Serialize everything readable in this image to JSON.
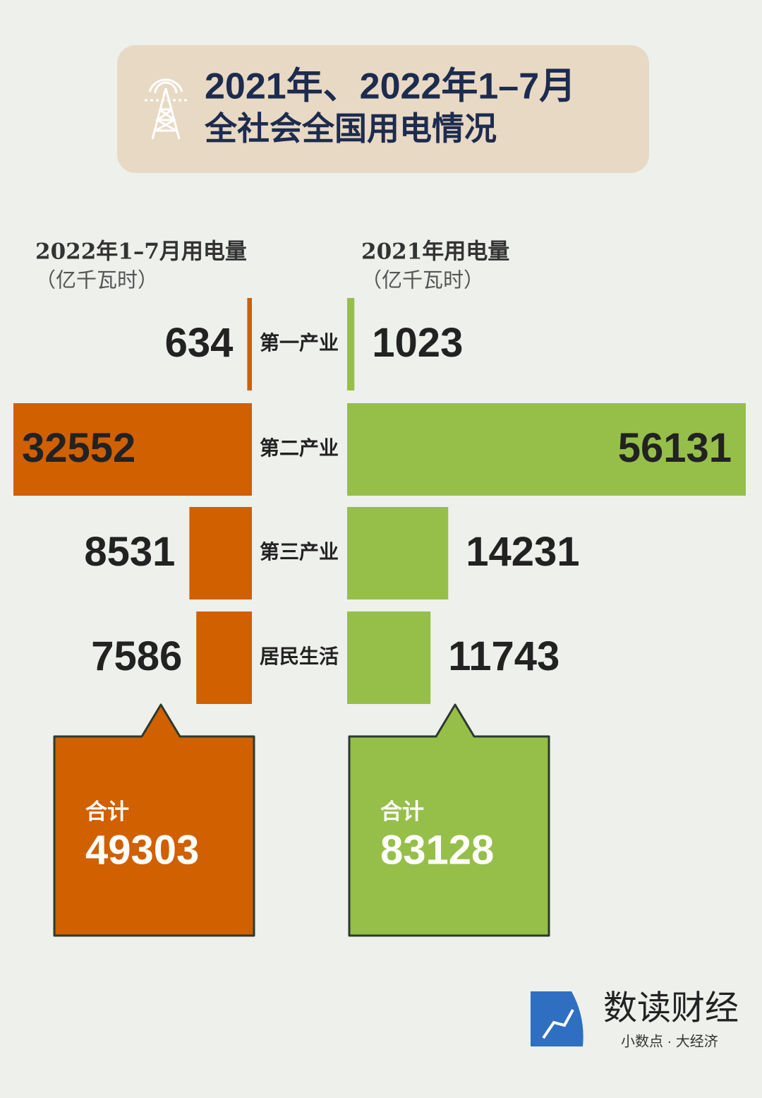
{
  "chart_data": {
    "type": "butterfly",
    "title_lines": [
      "2021年、2022年1–7月",
      "全社会全国用电情况"
    ],
    "categories": [
      "第一产业",
      "第二产业",
      "第三产业",
      "居民生活"
    ],
    "series": [
      {
        "name": "2022年1–7月用电量",
        "unit": "（亿千瓦时）",
        "color": "#d06000",
        "side": "left",
        "values": [
          634,
          32552,
          8531,
          7586
        ],
        "total_label": "合计",
        "total": 49303
      },
      {
        "name": "2021年用电量",
        "unit": "（亿千瓦时）",
        "color": "#96bf4a",
        "side": "right",
        "values": [
          1023,
          56131,
          14231,
          11743
        ],
        "total_label": "合计",
        "total": 83128
      }
    ]
  },
  "brand": {
    "name": "数读财经",
    "slogan": "小数点 · 大经济"
  }
}
